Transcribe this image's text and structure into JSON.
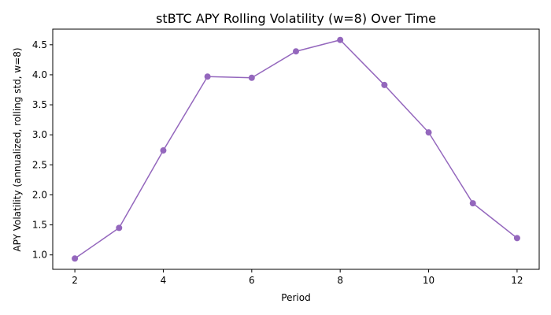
{
  "chart_data": {
    "type": "line",
    "title": "stBTC APY Rolling Volatility (w=8) Over Time",
    "xlabel": "Period",
    "ylabel": "APY Volatility (annualized, rolling std, w=8)",
    "x": [
      2,
      3,
      4,
      5,
      6,
      7,
      8,
      9,
      10,
      11,
      12
    ],
    "series": [
      {
        "values": [
          0.94,
          1.45,
          2.74,
          3.97,
          3.95,
          4.39,
          4.58,
          3.83,
          3.04,
          1.86,
          1.28
        ]
      }
    ],
    "xlim": [
      1.5,
      12.5
    ],
    "ylim": [
      0.76,
      4.76
    ],
    "xticks": [
      2,
      4,
      6,
      8,
      10,
      12
    ],
    "yticks": [
      1.0,
      1.5,
      2.0,
      2.5,
      3.0,
      3.5,
      4.0,
      4.5
    ],
    "xtick_labels": [
      "2",
      "4",
      "6",
      "8",
      "10",
      "12"
    ],
    "ytick_labels": [
      "1.0",
      "1.5",
      "2.0",
      "2.5",
      "3.0",
      "3.5",
      "4.0",
      "4.5"
    ],
    "grid": false,
    "color": "#9467bd"
  }
}
